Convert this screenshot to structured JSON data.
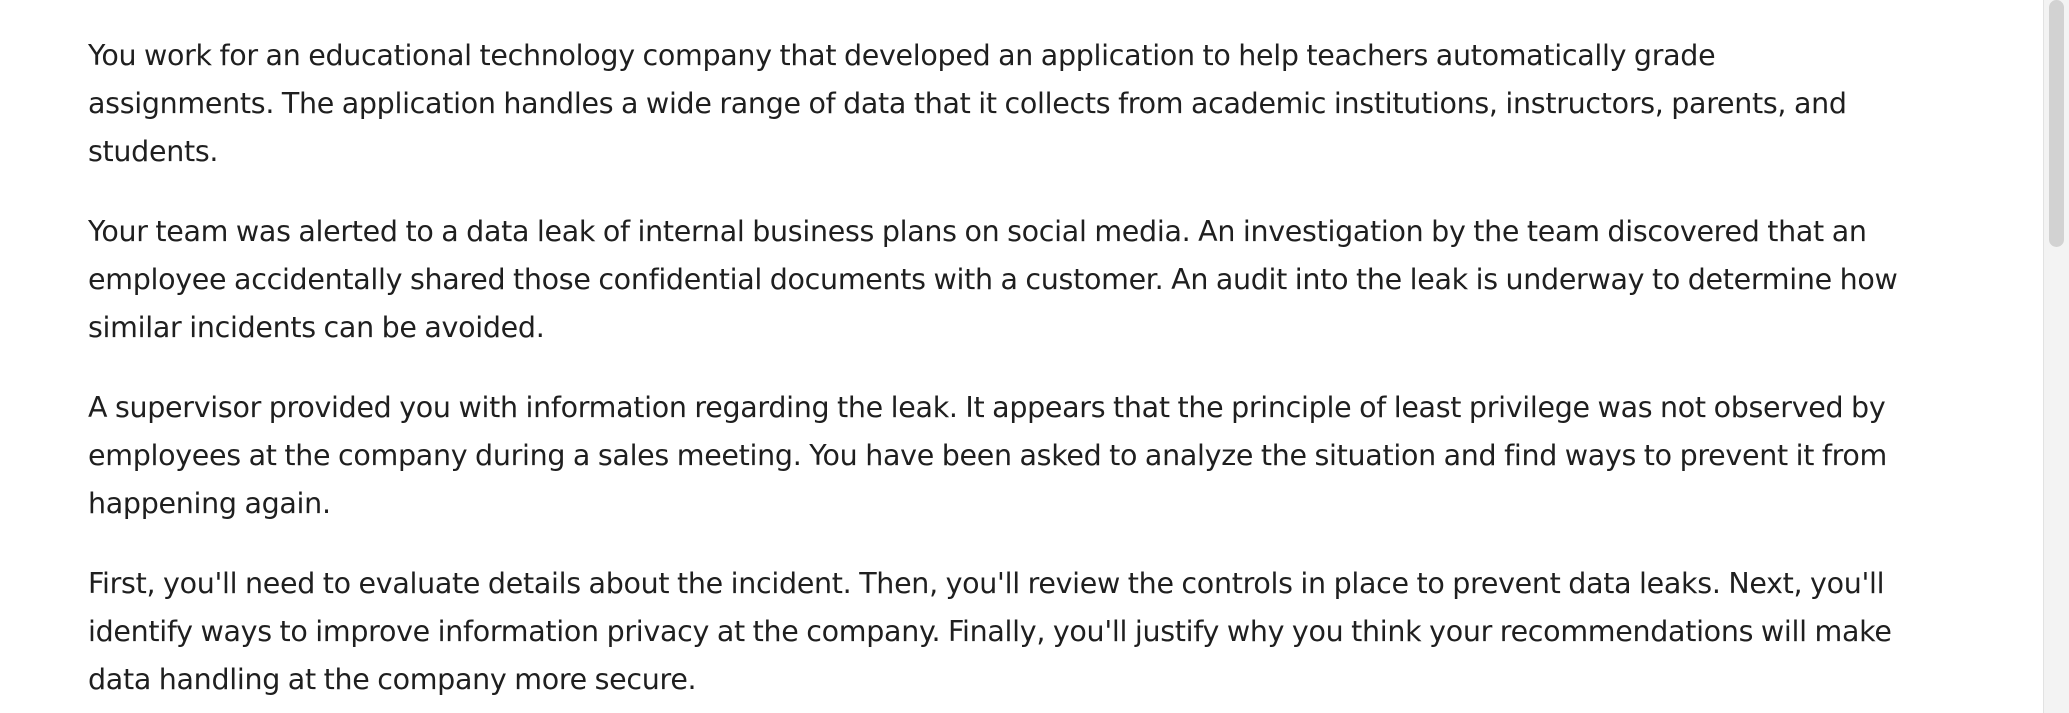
{
  "paragraphs": [
    "You work for an educational technology company that developed an application to help teachers automatically grade assignments. The application handles a wide range of data that it collects from academic institutions, instructors, parents, and students.",
    "Your team was alerted to a data leak of internal business plans on social media. An investigation by the team discovered that an employee accidentally shared those confidential documents with a customer. An audit into the leak is underway to determine how similar incidents can be avoided.",
    "A supervisor provided you with information regarding the leak. It appears that the principle of least privilege was not observed by employees at the company during a sales meeting. You have been asked to analyze the situation and find ways to prevent it from happening again.",
    "First, you'll need to evaluate details about the incident. Then, you'll review the controls in place to prevent data leaks. Next, you'll identify ways to improve information privacy at the company. Finally, you'll justify why you think your recommendations will make data handling at the company more secure."
  ],
  "colors": {
    "text": "#1f1f1f",
    "background": "#ffffff",
    "scrollbar_track": "#f3f3f3",
    "scrollbar_thumb": "#d2d2d2"
  }
}
